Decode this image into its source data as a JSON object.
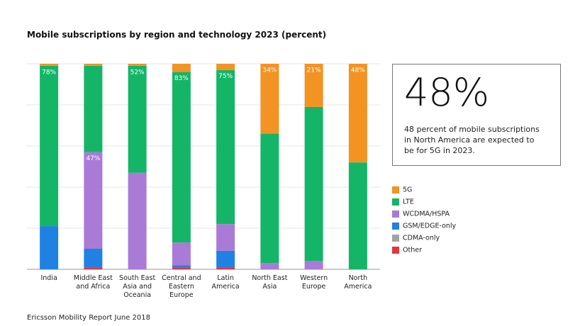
{
  "chart_data": {
    "type": "stacked-bar",
    "title": "Mobile subscriptions by region and technology 2023 (percent)",
    "categories": [
      "India",
      "Middle East and Africa",
      "South East Asia and Oceania",
      "Central and Eastern Europe",
      "Latin America",
      "North East Asia",
      "Western Europe",
      "North America"
    ],
    "series": [
      {
        "name": "5G",
        "color": "#f39323",
        "values": [
          1,
          1,
          1,
          4,
          3,
          34,
          21,
          48
        ],
        "value_labels": [
          null,
          null,
          null,
          null,
          null,
          "34%",
          "21%",
          "48%"
        ]
      },
      {
        "name": "LTE",
        "color": "#14b567",
        "values": [
          78,
          42,
          52,
          83,
          75,
          63,
          75,
          52
        ],
        "value_labels": [
          "78%",
          null,
          "52%",
          "83%",
          "75%",
          null,
          null,
          null
        ]
      },
      {
        "name": "WCDMA/HSPA",
        "color": "#a97bd6",
        "values": [
          0,
          47,
          47,
          11,
          13,
          3,
          4,
          0
        ],
        "value_labels": [
          null,
          "47%",
          null,
          null,
          null,
          null,
          null,
          null
        ]
      },
      {
        "name": "GSM/EDGE-only",
        "color": "#1f82e3",
        "values": [
          21,
          9,
          0,
          1,
          8,
          0,
          0,
          0
        ]
      },
      {
        "name": "CDMA-only",
        "color": "#a3a3a3",
        "values": [
          0,
          0,
          0,
          0,
          0,
          0,
          0,
          0
        ]
      },
      {
        "name": "Other",
        "color": "#e5343c",
        "values": [
          0,
          1,
          0,
          1,
          1,
          0,
          0,
          0
        ]
      }
    ],
    "ylim": [
      0,
      100
    ],
    "yticks": [
      0,
      20,
      40,
      60,
      80,
      100
    ],
    "grid": true,
    "legend": "right",
    "callout": {
      "headline": "48%",
      "text": "48 percent of mobile subscriptions in North America are expected to be for 5G in 2023."
    },
    "source": "Ericsson Mobility Report June 2018"
  }
}
